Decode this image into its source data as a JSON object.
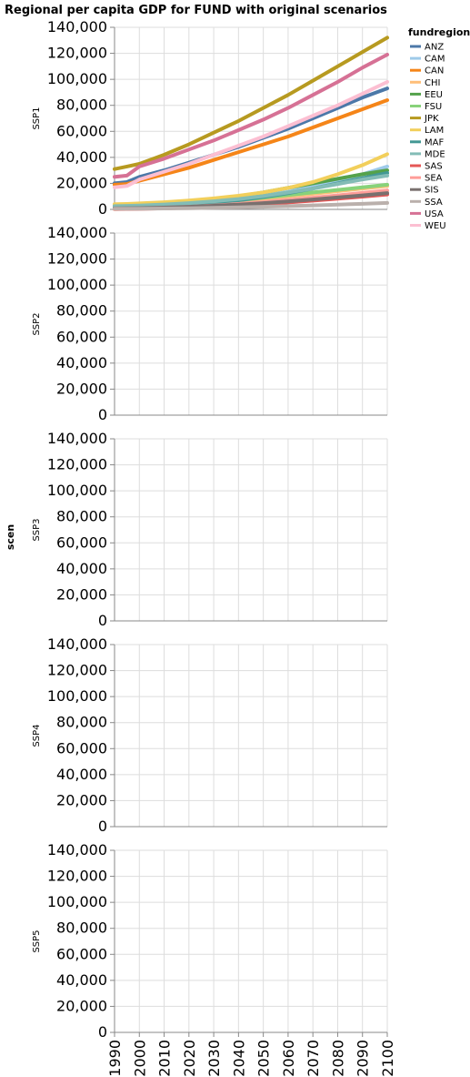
{
  "chart_data": {
    "type": "line",
    "title": "Regional per capita GDP for FUND with original scenarios",
    "row_title": "scen",
    "rows": [
      "SSP1",
      "SSP2",
      "SSP3",
      "SSP4",
      "SSP5"
    ],
    "x_ticks": [
      "1990",
      "2000",
      "2010",
      "2020",
      "2030",
      "2040",
      "2050",
      "2060",
      "2070",
      "2080",
      "2090",
      "2100"
    ],
    "y_ticks": [
      "0",
      "20,000",
      "40,000",
      "60,000",
      "80,000",
      "100,000",
      "120,000",
      "140,000"
    ],
    "xlim": [
      1990,
      2100
    ],
    "ylim": [
      0,
      140000
    ],
    "grid": true,
    "legend": {
      "title": "fundregion",
      "placement": "right"
    },
    "x": [
      1990,
      1995,
      2000,
      2010,
      2020,
      2030,
      2040,
      2050,
      2060,
      2070,
      2080,
      2090,
      2100
    ],
    "series": [
      {
        "name": "ANZ",
        "color": "#4c78a8",
        "values": [
          20000,
          21000,
          25000,
          30000,
          36000,
          42000,
          48000,
          55000,
          62000,
          70000,
          78000,
          86000,
          93000
        ]
      },
      {
        "name": "CAM",
        "color": "#9ecae9",
        "values": [
          3000,
          3200,
          3500,
          4200,
          5200,
          6800,
          8500,
          10500,
          13500,
          17500,
          22000,
          27000,
          33000
        ]
      },
      {
        "name": "CAN",
        "color": "#f58518",
        "values": [
          19000,
          19500,
          22000,
          27000,
          32000,
          38000,
          44000,
          50000,
          56000,
          63000,
          70000,
          77000,
          84000
        ]
      },
      {
        "name": "CHI",
        "color": "#ffbf79",
        "values": [
          300,
          500,
          900,
          1800,
          3000,
          4500,
          6200,
          8000,
          10000,
          12000,
          14000,
          16000,
          18000
        ]
      },
      {
        "name": "EEU",
        "color": "#54a24b",
        "values": [
          2500,
          2600,
          3000,
          4000,
          5500,
          7500,
          10000,
          13000,
          16500,
          20000,
          23500,
          27000,
          30000
        ]
      },
      {
        "name": "FSU",
        "color": "#88d27a",
        "values": [
          2000,
          1900,
          2000,
          2800,
          3800,
          5200,
          7000,
          9000,
          11000,
          13000,
          15000,
          17000,
          19000
        ]
      },
      {
        "name": "JPK",
        "color": "#b79a20",
        "values": [
          31000,
          33000,
          35000,
          42000,
          50000,
          59000,
          68000,
          78000,
          88000,
          99000,
          110000,
          121000,
          132000
        ]
      },
      {
        "name": "LAM",
        "color": "#f2cf5b",
        "values": [
          4000,
          4200,
          4600,
          5500,
          6800,
          8500,
          10500,
          13000,
          16500,
          21000,
          27000,
          34000,
          42500
        ]
      },
      {
        "name": "MAF",
        "color": "#439894",
        "values": [
          1500,
          1600,
          1800,
          2500,
          3500,
          5000,
          7000,
          9500,
          12500,
          16000,
          20000,
          24000,
          28000
        ]
      },
      {
        "name": "MDE",
        "color": "#83bcb6",
        "values": [
          2500,
          2700,
          3000,
          3800,
          4800,
          6200,
          8000,
          10200,
          13000,
          16000,
          19500,
          23000,
          26000
        ]
      },
      {
        "name": "SAS",
        "color": "#e45756",
        "values": [
          300,
          350,
          450,
          800,
          1300,
          2000,
          2900,
          4000,
          5300,
          6700,
          8200,
          9800,
          11500
        ]
      },
      {
        "name": "SEA",
        "color": "#ff9d98",
        "values": [
          500,
          600,
          800,
          1300,
          2000,
          3000,
          4200,
          5600,
          7200,
          9000,
          10800,
          12700,
          14500
        ]
      },
      {
        "name": "SIS",
        "color": "#79706e",
        "values": [
          800,
          900,
          1000,
          1400,
          2000,
          2800,
          3700,
          4800,
          6100,
          7600,
          9200,
          10800,
          12500
        ]
      },
      {
        "name": "SSA",
        "color": "#bab0ac",
        "values": [
          500,
          500,
          550,
          700,
          900,
          1200,
          1600,
          2000,
          2500,
          3100,
          3700,
          4300,
          5000
        ]
      },
      {
        "name": "USA",
        "color": "#d67195",
        "values": [
          25000,
          26000,
          33000,
          39000,
          46000,
          53000,
          61000,
          69000,
          78000,
          88000,
          98000,
          109000,
          119000
        ]
      },
      {
        "name": "WEU",
        "color": "#fcbfd2",
        "values": [
          17000,
          18000,
          23000,
          29000,
          35000,
          42000,
          49000,
          56000,
          64000,
          72000,
          80000,
          89000,
          98000
        ]
      }
    ]
  }
}
